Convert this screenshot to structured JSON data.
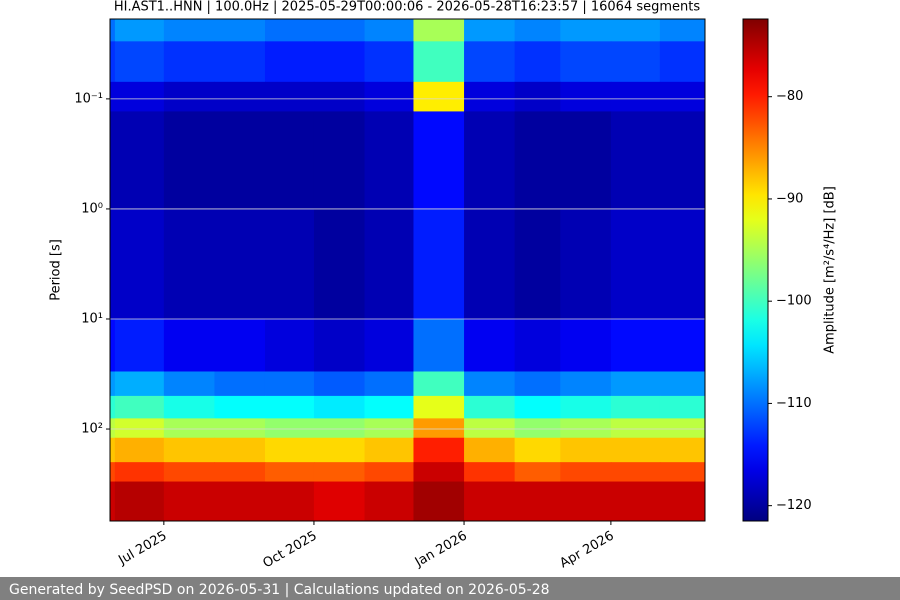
{
  "chart_data": {
    "type": "heatmap",
    "title": "HI.AST1..HNN | 100.0Hz | 2025-05-29T00:00:06 - 2026-05-28T16:23:57 | 16064 segments",
    "y_label": "Period [s]",
    "colorbar_label": "Amplitude [m²/s⁴/Hz] [dB]",
    "footer": "Generated by SeedPSD on 2026-05-31 | Calculations updated on 2026-05-28",
    "colormap": "jet",
    "grid": true,
    "yscale": "log",
    "y_inverted": true,
    "xlim": [
      "2025-05-29T00:00:06",
      "2026-05-28T16:23:57"
    ],
    "xticks": [
      {
        "value": "2025-07",
        "label": "Jul 2025"
      },
      {
        "value": "2025-10",
        "label": "Oct 2025"
      },
      {
        "value": "2026-01",
        "label": "Jan 2026"
      },
      {
        "value": "2026-04",
        "label": "Apr 2026"
      }
    ],
    "ylim": [
      0.0188,
      685
    ],
    "yticks": [
      {
        "value": 0.1,
        "label": "10⁻¹"
      },
      {
        "value": 1,
        "label": "10⁰"
      },
      {
        "value": 10,
        "label": "10¹"
      },
      {
        "value": 100,
        "label": "10²"
      }
    ],
    "clim": [
      -121.5,
      -72.4
    ],
    "cticks": [
      {
        "value": -120,
        "label": "−120"
      },
      {
        "value": -110,
        "label": "−110"
      },
      {
        "value": -100,
        "label": "−100"
      },
      {
        "value": -90,
        "label": "−90"
      },
      {
        "value": -80,
        "label": "−80"
      }
    ],
    "x": [
      "2025-05",
      "2025-06",
      "2025-07",
      "2025-08",
      "2025-09",
      "2025-10",
      "2025-11",
      "2025-12",
      "2026-01",
      "2026-02",
      "2026-03",
      "2026-04",
      "2026-05"
    ],
    "y_bins": [
      0.0188,
      0.03,
      0.07,
      0.13,
      1,
      10,
      30,
      50,
      80,
      120,
      200,
      300,
      685
    ],
    "values": [
      [
        -110,
        -108,
        -109,
        -109,
        -110,
        -110,
        -109,
        -95,
        -108,
        -109,
        -108,
        -108,
        -109
      ],
      [
        -113,
        -112,
        -113,
        -113,
        -114,
        -114,
        -113,
        -100,
        -112,
        -113,
        -112,
        -112,
        -113
      ],
      [
        -117,
        -117,
        -118,
        -118,
        -118,
        -118,
        -117,
        -90,
        -117,
        -118,
        -117,
        -117,
        -117
      ],
      [
        -119,
        -119,
        -120,
        -120,
        -120,
        -120,
        -119,
        -115,
        -119,
        -120,
        -120,
        -119,
        -119
      ],
      [
        -118,
        -118,
        -119,
        -119,
        -119,
        -120,
        -119,
        -114,
        -119,
        -120,
        -119,
        -118,
        -118
      ],
      [
        -115,
        -114,
        -116,
        -116,
        -117,
        -118,
        -117,
        -110,
        -116,
        -117,
        -116,
        -115,
        -115
      ],
      [
        -108,
        -107,
        -109,
        -110,
        -110,
        -111,
        -110,
        -100,
        -109,
        -110,
        -109,
        -108,
        -108
      ],
      [
        -101,
        -100,
        -102,
        -103,
        -103,
        -104,
        -103,
        -92,
        -101,
        -103,
        -102,
        -101,
        -101
      ],
      [
        -94,
        -93,
        -95,
        -95,
        -96,
        -96,
        -95,
        -86,
        -94,
        -96,
        -95,
        -94,
        -94
      ],
      [
        -88,
        -87,
        -88,
        -88,
        -89,
        -89,
        -88,
        -80,
        -87,
        -89,
        -88,
        -88,
        -88
      ],
      [
        -82,
        -81,
        -82,
        -82,
        -83,
        -83,
        -82,
        -76,
        -81,
        -83,
        -82,
        -82,
        -82
      ],
      [
        -76,
        -75,
        -76,
        -76,
        -76,
        -77,
        -76,
        -74,
        -76,
        -76,
        -76,
        -76,
        -76
      ]
    ]
  }
}
